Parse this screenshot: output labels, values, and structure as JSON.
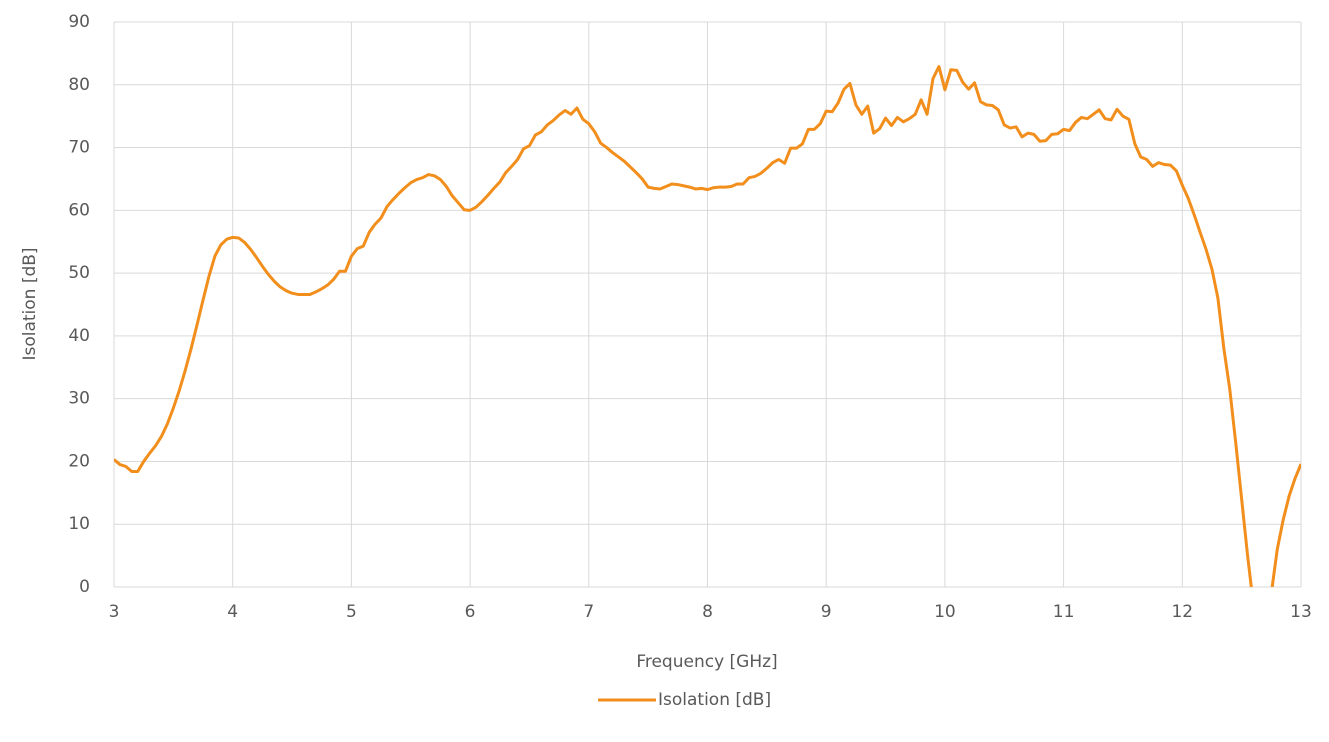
{
  "chart_data": {
    "type": "line",
    "xlabel": "Frequency [GHz]",
    "ylabel": "Isolation [dB]",
    "xlim": [
      3,
      13
    ],
    "xticks": [
      3,
      4,
      5,
      6,
      7,
      8,
      9,
      10,
      11,
      12,
      13
    ],
    "ylim": [
      0,
      90
    ],
    "yticks": [
      0,
      10,
      20,
      30,
      40,
      50,
      60,
      70,
      80,
      90
    ],
    "grid": true,
    "legend": "bottom",
    "x": [
      3.0,
      3.05,
      3.1,
      3.15,
      3.2,
      3.25,
      3.3,
      3.35,
      3.4,
      3.45,
      3.5,
      3.55,
      3.6,
      3.65,
      3.7,
      3.75,
      3.8,
      3.85,
      3.9,
      3.95,
      4.0,
      4.05,
      4.1,
      4.15,
      4.2,
      4.25,
      4.3,
      4.35,
      4.4,
      4.45,
      4.5,
      4.55,
      4.6,
      4.65,
      4.7,
      4.75,
      4.8,
      4.85,
      4.9,
      4.95,
      5.0,
      5.05,
      5.1,
      5.15,
      5.2,
      5.25,
      5.3,
      5.35,
      5.4,
      5.45,
      5.5,
      5.55,
      5.6,
      5.65,
      5.7,
      5.75,
      5.8,
      5.85,
      5.9,
      5.95,
      6.0,
      6.05,
      6.1,
      6.15,
      6.2,
      6.25,
      6.3,
      6.35,
      6.4,
      6.45,
      6.5,
      6.55,
      6.6,
      6.65,
      6.7,
      6.75,
      6.8,
      6.85,
      6.9,
      6.95,
      7.0,
      7.05,
      7.1,
      7.15,
      7.2,
      7.25,
      7.3,
      7.35,
      7.4,
      7.45,
      7.5,
      7.55,
      7.6,
      7.65,
      7.7,
      7.75,
      7.8,
      7.85,
      7.9,
      7.95,
      8.0,
      8.05,
      8.1,
      8.15,
      8.2,
      8.25,
      8.3,
      8.35,
      8.4,
      8.45,
      8.5,
      8.55,
      8.6,
      8.65,
      8.7,
      8.75,
      8.8,
      8.85,
      8.9,
      8.95,
      9.0,
      9.05,
      9.1,
      9.15,
      9.2,
      9.25,
      9.3,
      9.35,
      9.4,
      9.45,
      9.5,
      9.55,
      9.6,
      9.65,
      9.7,
      9.75,
      9.8,
      9.85,
      9.9,
      9.95,
      10.0,
      10.05,
      10.1,
      10.15,
      10.2,
      10.25,
      10.3,
      10.35,
      10.4,
      10.45,
      10.5,
      10.55,
      10.6,
      10.65,
      10.7,
      10.75,
      10.8,
      10.85,
      10.9,
      10.95,
      11.0,
      11.05,
      11.1,
      11.15,
      11.2,
      11.25,
      11.3,
      11.35,
      11.4,
      11.45,
      11.5,
      11.55,
      11.6,
      11.65,
      11.7,
      11.75,
      11.8,
      11.85,
      11.9,
      11.95,
      12.0,
      12.05,
      12.1,
      12.15,
      12.2,
      12.25,
      12.3,
      12.35,
      12.4,
      12.45,
      12.5,
      12.55,
      12.6,
      12.65,
      12.7,
      12.75,
      12.8,
      12.85,
      12.9,
      12.95,
      13.0
    ],
    "series": [
      {
        "name": "Isolation [dB]",
        "color": "#f28e1c",
        "values": [
          20.3,
          19.5,
          19.2,
          18.4,
          18.4,
          20,
          21.3,
          22.5,
          24,
          26,
          28.5,
          31.3,
          34.5,
          38,
          41.8,
          45.7,
          49.5,
          52.7,
          54.5,
          55.4,
          55.7,
          55.6,
          54.9,
          53.8,
          52.5,
          51.1,
          49.8,
          48.7,
          47.8,
          47.2,
          46.8,
          46.6,
          46.6,
          46.6,
          47,
          47.5,
          48.1,
          49,
          50.3,
          50.3,
          52.7,
          53.9,
          54.3,
          56.5,
          57.8,
          58.8,
          60.6,
          61.7,
          62.7,
          63.6,
          64.4,
          64.9,
          65.2,
          65.7,
          65.5,
          64.9,
          63.8,
          62.3,
          61.2,
          60.1,
          60,
          60.5,
          61.4,
          62.4,
          63.5,
          64.5,
          66,
          67,
          68.1,
          69.8,
          70.3,
          72,
          72.5,
          73.6,
          74.3,
          75.2,
          75.9,
          75.3,
          76.3,
          74.5,
          73.8,
          72.5,
          70.7,
          70,
          69.2,
          68.5,
          67.8,
          66.9,
          66,
          65,
          63.7,
          63.5,
          63.4,
          63.8,
          64.2,
          64.1,
          63.9,
          63.7,
          63.4,
          63.5,
          63.3,
          63.6,
          63.7,
          63.7,
          63.8,
          64.2,
          64.2,
          65.2,
          65.4,
          65.9,
          66.7,
          67.6,
          68.1,
          67.5,
          69.9,
          69.9,
          70.6,
          72.9,
          72.9,
          73.8,
          75.8,
          75.7,
          77.1,
          79.3,
          80.2,
          76.8,
          75.3,
          76.6,
          72.3,
          73,
          74.7,
          73.5,
          74.8,
          74.1,
          74.6,
          75.3,
          77.6,
          75.3,
          81,
          82.9,
          79.2,
          82.4,
          82.3,
          80.4,
          79.3,
          80.3,
          77.3,
          76.8,
          76.7,
          76,
          73.6,
          73.1,
          73.3,
          71.7,
          72.3,
          72.1,
          71,
          71.1,
          72.1,
          72.2,
          72.9,
          72.7,
          74,
          74.8,
          74.6,
          75.3,
          76,
          74.6,
          74.4,
          76.1,
          75,
          74.5,
          70.6,
          68.5,
          68.1,
          67,
          67.6,
          67.3,
          67.2,
          66.3,
          64,
          61.9,
          59.3,
          56.5,
          53.8,
          50.6,
          46,
          38,
          31.5,
          23,
          14,
          5,
          -3,
          -10,
          -10,
          -1,
          6,
          10.7,
          14.5,
          17.3,
          19.6
        ]
      }
    ]
  }
}
